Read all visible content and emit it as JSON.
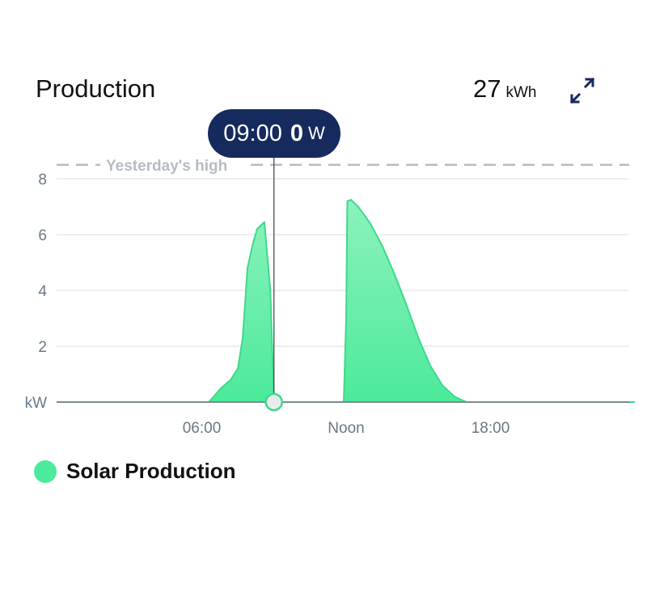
{
  "header": {
    "title": "Production",
    "total_value": "27",
    "total_unit": "kWh",
    "expand_icon": "expand-arrows-icon"
  },
  "tooltip": {
    "time": "09:00",
    "value": "0",
    "unit": "W"
  },
  "reference": {
    "label": "Yesterday's high",
    "value": 8.5
  },
  "legend": {
    "label": "Solar Production",
    "color": "#4cea9b"
  },
  "colors": {
    "tooltip_bg": "#162a5e",
    "series_line": "#3fd98a",
    "series_fill_top": "#8cf2bd",
    "series_fill_bottom": "#4cea9b",
    "grid": "#e6e9ee",
    "axis_text": "#6b7785",
    "reference_line": "#b6bcc6",
    "icon": "#162a5e"
  },
  "chart_data": {
    "type": "area",
    "ylabel": "kW",
    "y_ticks": [
      2,
      4,
      6,
      8
    ],
    "ylim": [
      0,
      8.5
    ],
    "xlim": [
      0,
      24
    ],
    "x_ticks": [
      {
        "value": 6,
        "label": "06:00"
      },
      {
        "value": 12,
        "label": "Noon"
      },
      {
        "value": 18,
        "label": "18:00"
      }
    ],
    "grid": true,
    "series": [
      {
        "name": "Solar Production",
        "x": [
          0,
          6.3,
          6.8,
          7.2,
          7.5,
          7.7,
          7.9,
          8.1,
          8.3,
          8.6,
          8.85,
          9.0,
          9.01,
          11.9,
          12.0,
          12.05,
          12.2,
          12.5,
          13.0,
          13.5,
          14.0,
          14.5,
          15.0,
          15.5,
          16.0,
          16.5,
          17.0,
          24
        ],
        "values": [
          0,
          0,
          0.5,
          0.8,
          1.2,
          2.3,
          4.8,
          5.6,
          6.2,
          6.45,
          4.0,
          0,
          0,
          0,
          3.0,
          7.2,
          7.25,
          7.0,
          6.4,
          5.6,
          4.6,
          3.5,
          2.3,
          1.3,
          0.6,
          0.2,
          0,
          0
        ]
      }
    ],
    "cursor_x": 9.0
  }
}
